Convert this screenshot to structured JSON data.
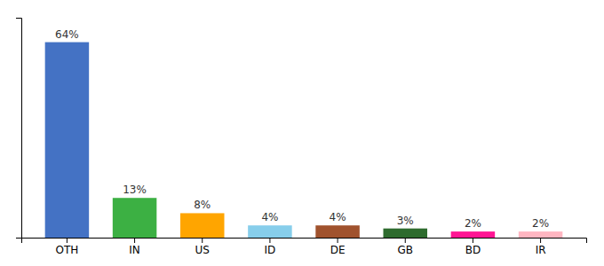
{
  "chart_data": {
    "type": "bar",
    "categories": [
      "OTH",
      "IN",
      "US",
      "ID",
      "DE",
      "GB",
      "BD",
      "IR"
    ],
    "values": [
      64,
      13,
      8,
      4,
      4,
      3,
      2,
      2
    ],
    "value_labels": [
      "64%",
      "13%",
      "8%",
      "4%",
      "4%",
      "3%",
      "2%",
      "2%"
    ],
    "colors": [
      "#4472C4",
      "#3CB043",
      "#FFA500",
      "#87CEEB",
      "#A0522D",
      "#2E6B2E",
      "#FF1493",
      "#FFB6C1"
    ],
    "ylim": [
      0,
      72
    ],
    "data_labels": true,
    "tick_labels": "x",
    "grid": false
  }
}
